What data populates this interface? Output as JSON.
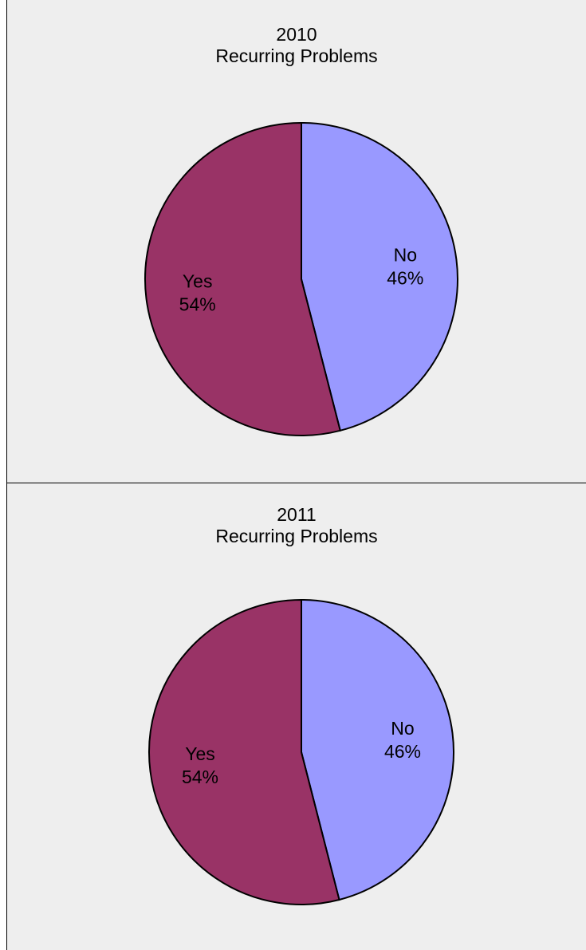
{
  "chart_data": [
    {
      "type": "pie",
      "title_line1": "2010",
      "title_line2": "Recurring Problems",
      "slices": [
        {
          "name": "No",
          "value": 46,
          "label": "46%",
          "color": "#9999ff"
        },
        {
          "name": "Yes",
          "value": 54,
          "label": "54%",
          "color": "#993366"
        }
      ]
    },
    {
      "type": "pie",
      "title_line1": "2011",
      "title_line2": "Recurring Problems",
      "slices": [
        {
          "name": "No",
          "value": 46,
          "label": "46%",
          "color": "#9999ff"
        },
        {
          "name": "Yes",
          "value": 54,
          "label": "54%",
          "color": "#993366"
        }
      ]
    }
  ]
}
